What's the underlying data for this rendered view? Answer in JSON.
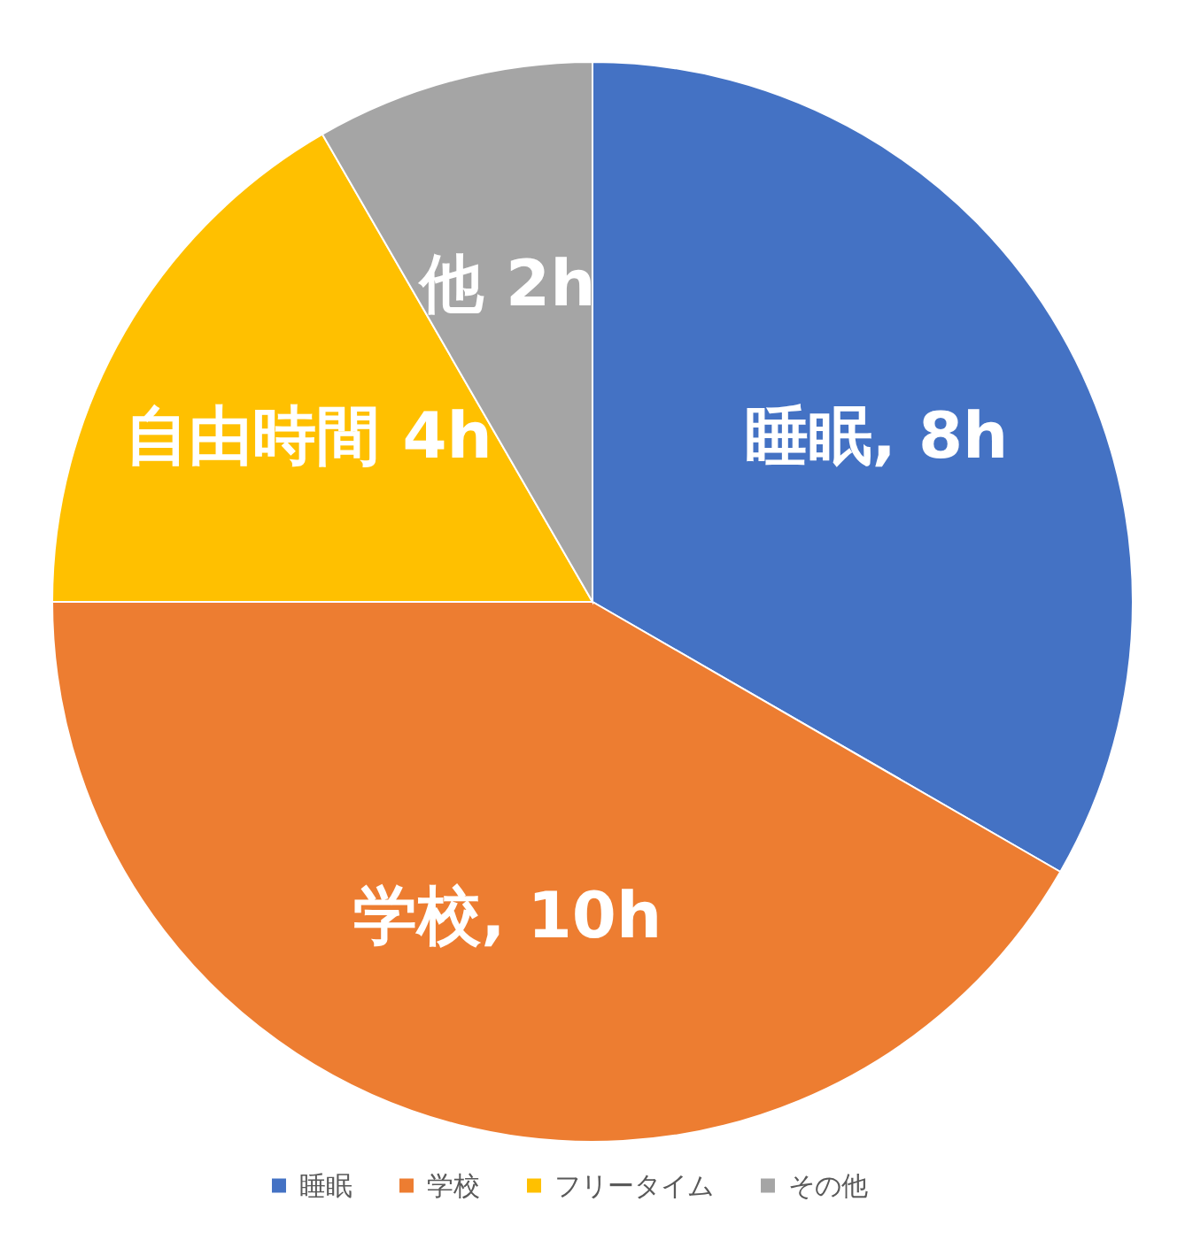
{
  "chart_data": {
    "type": "pie",
    "categories": [
      "睡眠",
      "学校",
      "フリータイム",
      "その他"
    ],
    "values": [
      8,
      10,
      4,
      2
    ],
    "colors": [
      "#4472c4",
      "#ed7d31",
      "#ffc000",
      "#a5a5a5"
    ],
    "value_labels": [
      "睡眠, 8h",
      "学校, 10h",
      "自由時間 4h",
      "他  2h"
    ],
    "legend": "bottom"
  }
}
